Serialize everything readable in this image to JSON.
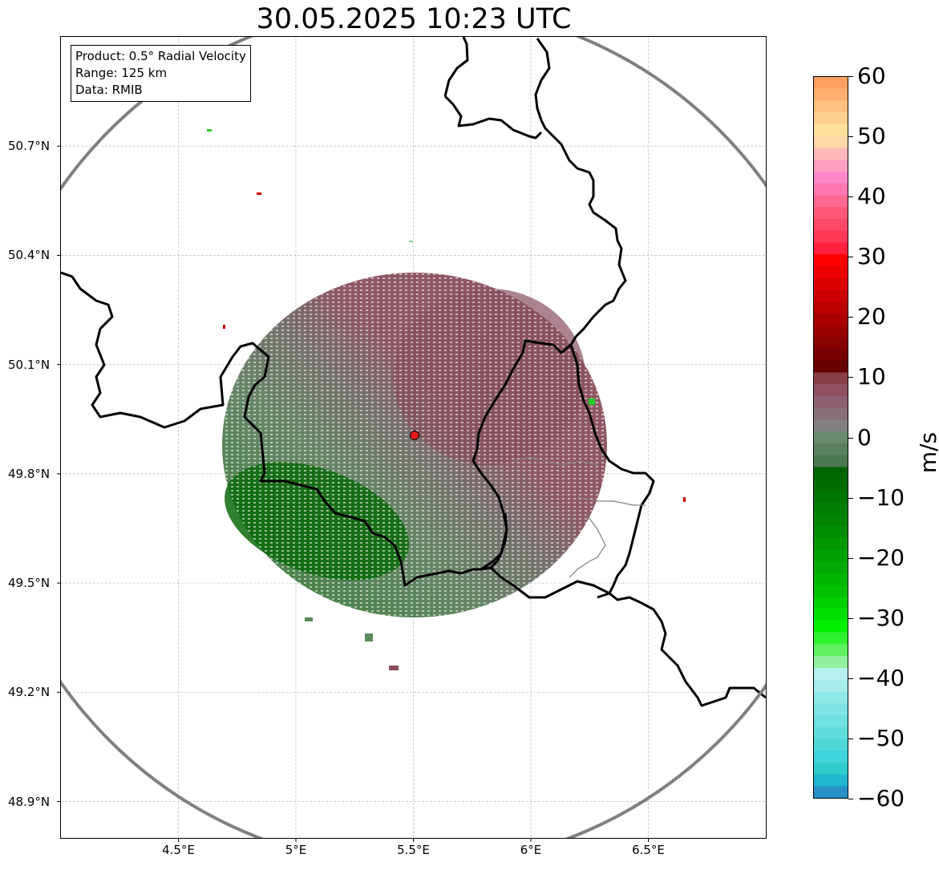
{
  "title": "30.05.2025 10:23 UTC",
  "info": {
    "product": "Product: 0.5° Radial Velocity",
    "range": "Range: 125 km",
    "data": "Data: RMIB"
  },
  "latitude_ticks": [
    {
      "value": 50.7,
      "label": "50.7°N"
    },
    {
      "value": 50.4,
      "label": "50.4°N"
    },
    {
      "value": 50.1,
      "label": "50.1°N"
    },
    {
      "value": 49.8,
      "label": "49.8°N"
    },
    {
      "value": 49.5,
      "label": "49.5°N"
    },
    {
      "value": 49.2,
      "label": "49.2°N"
    },
    {
      "value": 48.9,
      "label": "48.9°N"
    }
  ],
  "longitude_ticks": [
    {
      "value": 4.5,
      "label": "4.5°E"
    },
    {
      "value": 5.0,
      "label": "5°E"
    },
    {
      "value": 5.5,
      "label": "5.5°E"
    },
    {
      "value": 6.0,
      "label": "6°E"
    },
    {
      "value": 6.5,
      "label": "6.5°E"
    }
  ],
  "map_extent": {
    "lon_min": 4.0,
    "lon_max": 7.0,
    "lat_min": 48.8,
    "lat_max": 51.0
  },
  "radar_site": {
    "lon": 5.505,
    "lat": 49.914,
    "color": "#e31a1c"
  },
  "range_ring_km": 125,
  "colorbar": {
    "unit": "m/s",
    "min": -60,
    "max": 60,
    "tick_values": [
      60,
      50,
      40,
      30,
      20,
      10,
      0,
      -10,
      -20,
      -30,
      -40,
      -50,
      -60
    ],
    "tick_labels": [
      "60",
      "50",
      "40",
      "30",
      "20",
      "10",
      "0",
      "−10",
      "−20",
      "−30",
      "−40",
      "−50",
      "−60"
    ],
    "colors_top_to_bottom": [
      "#ffa060",
      "#ffb070",
      "#ffc080",
      "#ffd090",
      "#ffe09a",
      "#ffd8a8",
      "#ffb8b8",
      "#ffa0c0",
      "#ff88c8",
      "#ff78b0",
      "#ff6890",
      "#ff5878",
      "#ff4868",
      "#ff3858",
      "#ff2040",
      "#ff0000",
      "#ee0000",
      "#dd0000",
      "#cc0000",
      "#bb0000",
      "#aa0000",
      "#990000",
      "#880000",
      "#770000",
      "#660000",
      "#884048",
      "#905060",
      "#8c6070",
      "#887078",
      "#828080",
      "#6a8a70",
      "#5a8060",
      "#4a7850",
      "#006400",
      "#006c00",
      "#007400",
      "#007c00",
      "#008400",
      "#008c00",
      "#009600",
      "#00a000",
      "#00aa00",
      "#00b400",
      "#00c000",
      "#00d000",
      "#00e000",
      "#00f000",
      "#30f030",
      "#60f060",
      "#90f0a0",
      "#b8f0f0",
      "#a8ecec",
      "#90e8e8",
      "#80e4e4",
      "#70e0e0",
      "#60dcdc",
      "#50d8d8",
      "#40d4dc",
      "#30cccc",
      "#20b8d0",
      "#2890c8"
    ]
  },
  "colors": {
    "range_ring": "#808080",
    "borders": "#000000",
    "subregions": "#808080",
    "grid": "#b0b0b0",
    "outbound_tone": "#8a4c5a",
    "inbound_tone": "#5f8060",
    "strong_inbound": "#006400"
  }
}
